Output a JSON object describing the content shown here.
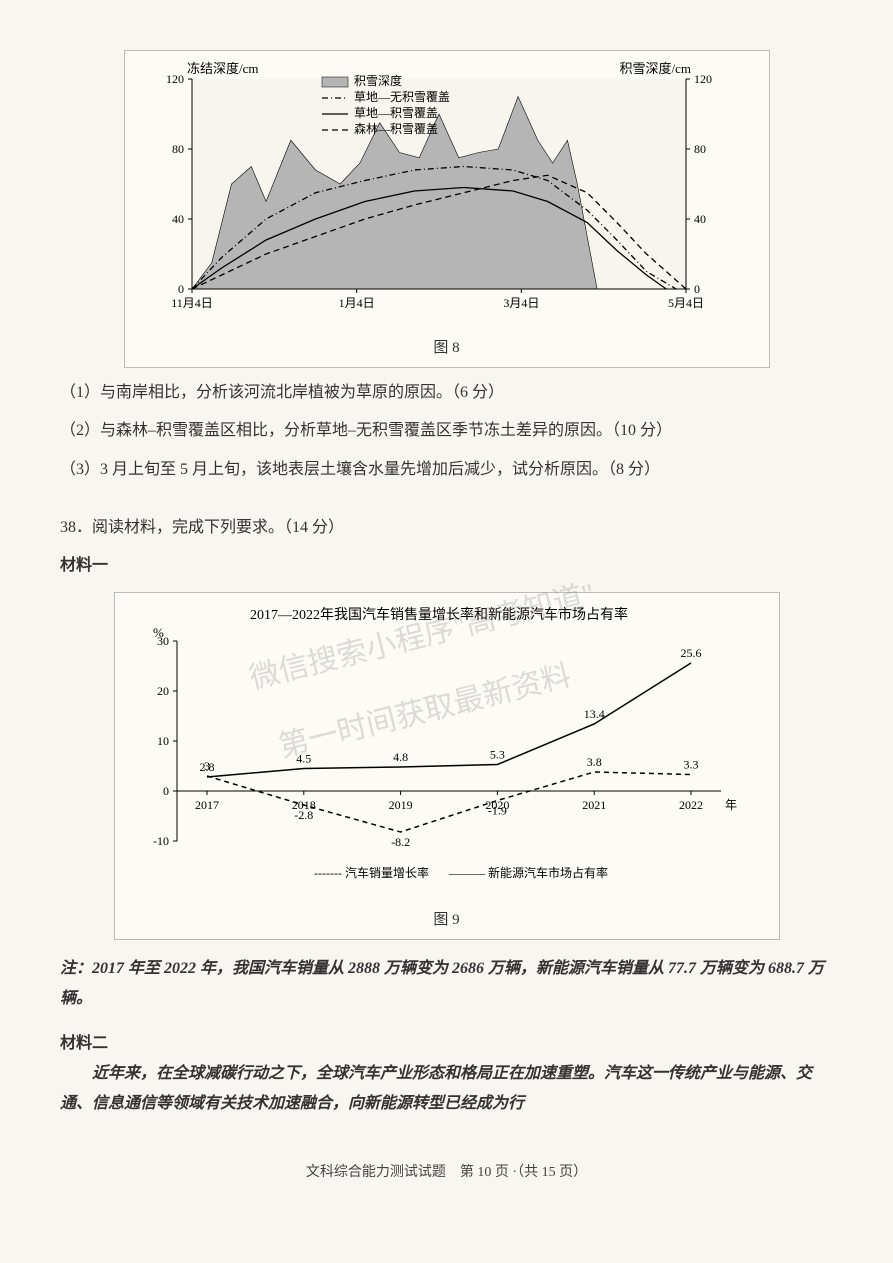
{
  "chart8": {
    "type": "line-area-combo",
    "title_left": "冻结深度/cm",
    "title_right": "积雪深度/cm",
    "xticks": [
      "11月4日",
      "1月4日",
      "3月4日",
      "5月4日"
    ],
    "y_left": {
      "min": 0,
      "max": 120,
      "step": 40,
      "ticks": [
        0,
        40,
        80,
        120
      ]
    },
    "y_right": {
      "min": 0,
      "max": 120,
      "step": 40,
      "ticks": [
        0,
        40,
        80,
        120
      ]
    },
    "legend": {
      "area": "积雪深度",
      "dashdot": "草地—无积雪覆盖",
      "solid": "草地—积雪覆盖",
      "dash": "森林—积雪覆盖"
    },
    "colors": {
      "area_fill": "#b5b5b5",
      "axis": "#000000",
      "grid": "#d0d0d0",
      "line": "#000000",
      "bg": "#f7f5ee"
    },
    "data": {
      "area_points": [
        [
          0,
          0
        ],
        [
          0.04,
          15
        ],
        [
          0.08,
          60
        ],
        [
          0.12,
          70
        ],
        [
          0.15,
          50
        ],
        [
          0.2,
          85
        ],
        [
          0.25,
          68
        ],
        [
          0.3,
          60
        ],
        [
          0.34,
          72
        ],
        [
          0.38,
          95
        ],
        [
          0.42,
          78
        ],
        [
          0.46,
          75
        ],
        [
          0.5,
          100
        ],
        [
          0.54,
          75
        ],
        [
          0.58,
          78
        ],
        [
          0.62,
          80
        ],
        [
          0.66,
          110
        ],
        [
          0.7,
          85
        ],
        [
          0.73,
          72
        ],
        [
          0.76,
          85
        ],
        [
          0.78,
          60
        ],
        [
          0.8,
          30
        ],
        [
          0.82,
          0
        ]
      ],
      "dashdot_points": [
        [
          0,
          0
        ],
        [
          0.06,
          18
        ],
        [
          0.15,
          40
        ],
        [
          0.25,
          55
        ],
        [
          0.35,
          62
        ],
        [
          0.45,
          68
        ],
        [
          0.55,
          70
        ],
        [
          0.65,
          68
        ],
        [
          0.72,
          62
        ],
        [
          0.8,
          45
        ],
        [
          0.86,
          28
        ],
        [
          0.92,
          10
        ],
        [
          0.98,
          0
        ]
      ],
      "solid_points": [
        [
          0,
          0
        ],
        [
          0.06,
          12
        ],
        [
          0.15,
          28
        ],
        [
          0.25,
          40
        ],
        [
          0.35,
          50
        ],
        [
          0.45,
          56
        ],
        [
          0.55,
          58
        ],
        [
          0.65,
          56
        ],
        [
          0.72,
          50
        ],
        [
          0.8,
          38
        ],
        [
          0.86,
          22
        ],
        [
          0.92,
          8
        ],
        [
          0.96,
          0
        ]
      ],
      "dash_points": [
        [
          0,
          0
        ],
        [
          0.06,
          8
        ],
        [
          0.15,
          20
        ],
        [
          0.25,
          30
        ],
        [
          0.35,
          40
        ],
        [
          0.45,
          48
        ],
        [
          0.55,
          55
        ],
        [
          0.65,
          62
        ],
        [
          0.72,
          65
        ],
        [
          0.8,
          55
        ],
        [
          0.86,
          38
        ],
        [
          0.92,
          20
        ],
        [
          0.98,
          5
        ],
        [
          1,
          0
        ]
      ]
    },
    "caption": "图 8",
    "line_width": 1.3
  },
  "q1": "（1）与南岸相比，分析该河流北岸植被为草原的原因。（6 分）",
  "q2": "（2）与森林–积雪覆盖区相比，分析草地–无积雪覆盖区季节冻土差异的原因。（10 分）",
  "q3": "（3）3 月上旬至 5 月上旬，该地表层土壤含水量先增加后减少，试分析原因。（8 分）",
  "q38_head": "38．阅读材料，完成下列要求。（14 分）",
  "mat1_label": "材料一",
  "chart9": {
    "type": "line",
    "title": "2017—2022年我国汽车销售量增长率和新能源汽车市场占有率",
    "y_unit": "%",
    "y": {
      "min": -10,
      "max": 30,
      "step": 10,
      "ticks": [
        -10,
        0,
        10,
        20,
        30
      ]
    },
    "x_labels": [
      "2017",
      "2018",
      "2019",
      "2020",
      "2021",
      "2022"
    ],
    "x_axis_label": "年",
    "series": [
      {
        "name": "汽车销量增长率",
        "style": "dashed",
        "values": [
          3,
          -2.8,
          -8.2,
          -1.9,
          3.8,
          3.3
        ],
        "value_labels": [
          "3",
          "-2.8",
          "-8.2",
          "-1.9",
          "3.8",
          "3.3"
        ]
      },
      {
        "name": "新能源汽车市场占有率",
        "style": "solid",
        "values": [
          2.8,
          4.5,
          4.8,
          5.3,
          13.4,
          25.6
        ],
        "value_labels": [
          "2.8",
          "4.5",
          "4.8",
          "5.3",
          "13.4",
          "25.6"
        ]
      }
    ],
    "legend_prefix_dashed": "------- ",
    "legend_prefix_solid": "——— ",
    "colors": {
      "line": "#000000",
      "dashed": "#000000",
      "bg": "#fdfbf6",
      "border": "#999999",
      "grid": "#d8d8d8",
      "text": "#000000"
    },
    "caption": "图 9",
    "line_width": 1.5
  },
  "note_text": "注：2017 年至 2022 年，我国汽车销量从 2888 万辆变为 2686 万辆，新能源汽车销量从 77.7 万辆变为 688.7 万辆。",
  "mat2_label": "材料二",
  "mat2_text": "近年来，在全球减碳行动之下，全球汽车产业形态和格局正在加速重塑。汽车这一传统产业与能源、交通、信息通信等领域有关技术加速融合，向新能源转型已经成为行",
  "footer": "文科综合能力测试试题　第 10 页 ·（共 15 页）",
  "watermark1": "微信搜索小程序\"高考知道\"",
  "watermark2": "第一时间获取最新资料"
}
